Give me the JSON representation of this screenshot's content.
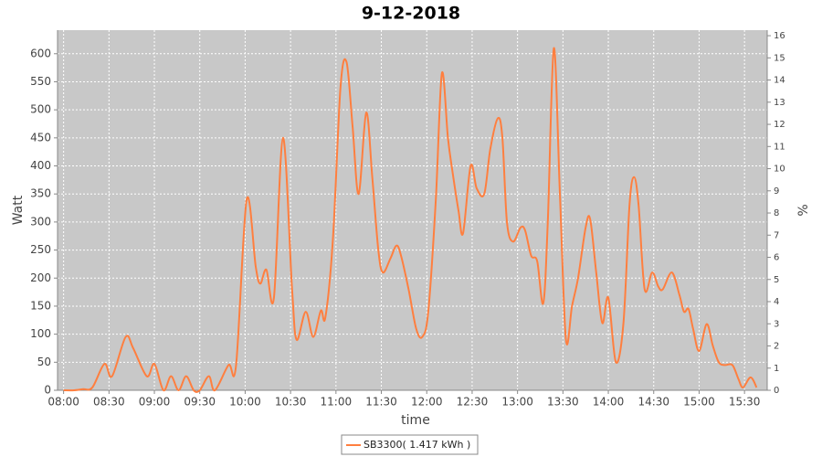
{
  "chart_data": {
    "type": "line",
    "title": "9-12-2018",
    "x_label": "time",
    "y_label": "Watt",
    "y2_label": "%",
    "x": [
      "08:00",
      "08:07",
      "08:13",
      "08:19",
      "08:27",
      "08:32",
      "08:41",
      "08:46",
      "08:55",
      "09:00",
      "09:06",
      "09:11",
      "09:16",
      "09:21",
      "09:26",
      "09:30",
      "09:36",
      "09:40",
      "09:49",
      "09:54",
      "10:01",
      "10:07",
      "10:10",
      "10:14",
      "10:19",
      "10:25",
      "10:31",
      "10:34",
      "10:40",
      "10:45",
      "10:50",
      "10:53",
      "10:58",
      "11:03",
      "11:07",
      "11:11",
      "11:15",
      "11:20",
      "11:24",
      "11:28",
      "11:31",
      "11:36",
      "11:40",
      "11:43",
      "11:48",
      "11:53",
      "11:57",
      "12:01",
      "12:06",
      "12:10",
      "12:14",
      "12:17",
      "12:21",
      "12:24",
      "12:29",
      "12:33",
      "12:38",
      "12:42",
      "12:47",
      "12:50",
      "12:53",
      "12:57",
      "13:02",
      "13:05",
      "13:09",
      "13:13",
      "13:17",
      "13:20",
      "13:24",
      "13:28",
      "13:32",
      "13:36",
      "13:40",
      "13:45",
      "13:48",
      "13:52",
      "13:56",
      "14:00",
      "14:05",
      "14:10",
      "14:14",
      "14:17",
      "14:20",
      "14:24",
      "14:29",
      "14:33",
      "14:36",
      "14:42",
      "14:47",
      "14:50",
      "14:53",
      "14:56",
      "15:00",
      "15:05",
      "15:09",
      "15:13",
      "15:17",
      "15:22",
      "15:26",
      "15:29",
      "15:34",
      "15:38"
    ],
    "series": [
      {
        "name": "SB3300( 1.417 kWh )",
        "color": "#ff7f3f",
        "values": [
          0,
          0,
          2,
          5,
          47,
          25,
          95,
          75,
          25,
          47,
          0,
          25,
          0,
          25,
          0,
          0,
          25,
          0,
          45,
          45,
          340,
          220,
          190,
          215,
          165,
          450,
          180,
          90,
          140,
          95,
          142,
          130,
          270,
          540,
          585,
          470,
          350,
          495,
          380,
          250,
          210,
          235,
          258,
          240,
          180,
          110,
          95,
          140,
          340,
          565,
          450,
          390,
          320,
          280,
          400,
          360,
          350,
          430,
          485,
          450,
          300,
          265,
          290,
          285,
          240,
          230,
          155,
          300,
          610,
          350,
          90,
          150,
          200,
          290,
          305,
          210,
          120,
          165,
          50,
          120,
          330,
          380,
          330,
          180,
          210,
          185,
          180,
          210,
          170,
          140,
          145,
          110,
          70,
          118,
          80,
          50,
          45,
          45,
          20,
          5,
          23,
          5
        ]
      }
    ],
    "xlim": [
      "07:56",
      "15:45"
    ],
    "xticks": [
      "08:00",
      "08:30",
      "09:00",
      "09:30",
      "10:00",
      "10:30",
      "11:00",
      "11:30",
      "12:00",
      "12:30",
      "13:00",
      "13:30",
      "14:00",
      "14:30",
      "15:00",
      "15:30"
    ],
    "ylim": [
      0,
      642
    ],
    "yticks": [
      0,
      50,
      100,
      150,
      200,
      250,
      300,
      350,
      400,
      450,
      500,
      550,
      600
    ],
    "y2lim": [
      0,
      16.25
    ],
    "y2ticks": [
      0,
      1,
      2,
      3,
      4,
      5,
      6,
      7,
      8,
      9,
      10,
      11,
      12,
      13,
      14,
      15,
      16
    ],
    "grid": true,
    "legend": "bottom"
  }
}
